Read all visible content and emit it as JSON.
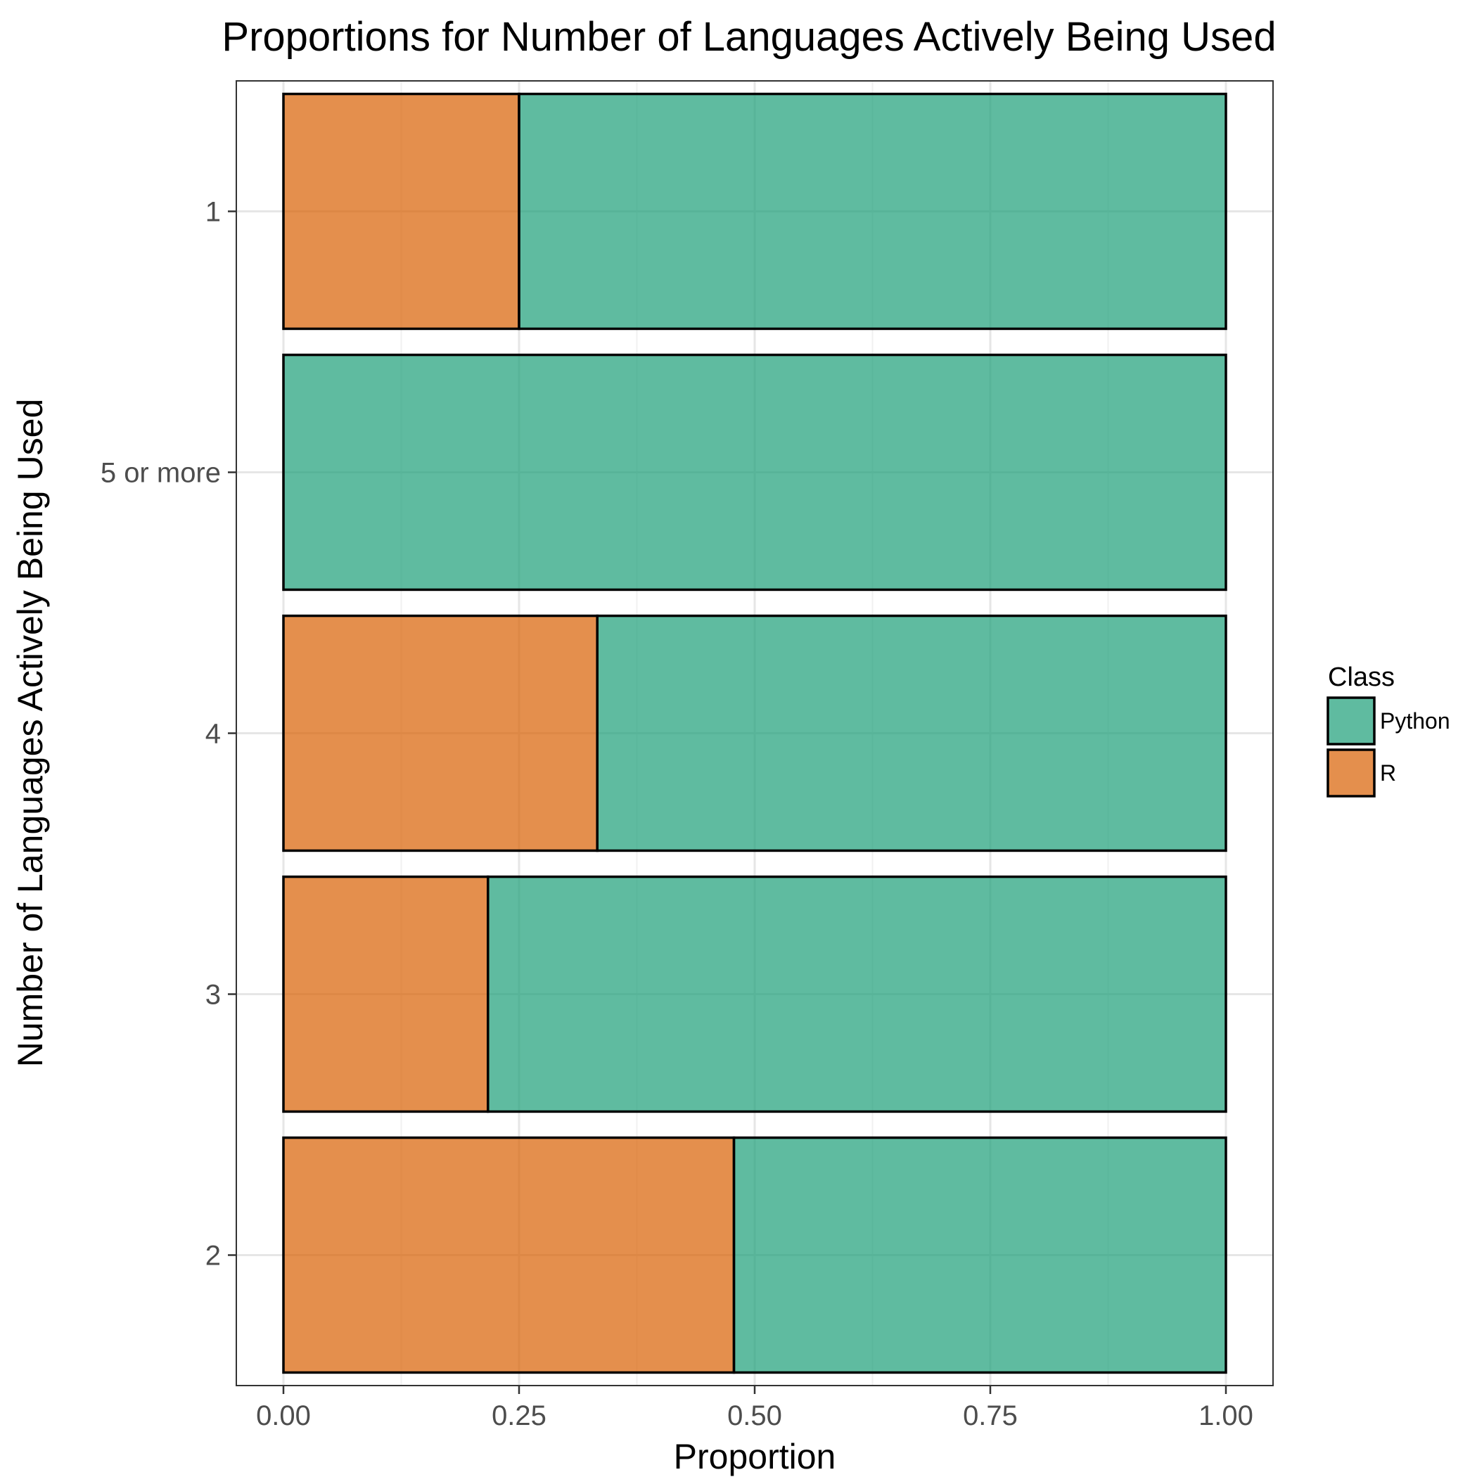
{
  "chart_data": {
    "type": "bar",
    "orientation": "horizontal",
    "stacked": true,
    "title": "Proportions for Number of Languages Actively Being Used",
    "xlabel": "Proportion",
    "ylabel": "Number of Languages Actively Being Used",
    "xlim": [
      0,
      1
    ],
    "x_ticks": [
      "0.00",
      "0.25",
      "0.50",
      "0.75",
      "1.00"
    ],
    "x_tick_values": [
      0,
      0.25,
      0.5,
      0.75,
      1.0
    ],
    "categories": [
      "1",
      "5 or more",
      "4",
      "3",
      "2"
    ],
    "series": [
      {
        "name": "R",
        "values": [
          0.25,
          0.0,
          0.333,
          0.217,
          0.478
        ],
        "color": "#d95f02"
      },
      {
        "name": "Python",
        "values": [
          0.75,
          1.0,
          0.667,
          0.783,
          0.522
        ],
        "color": "#1b9e77"
      }
    ],
    "grid": true,
    "legend": {
      "title": "Class",
      "position": "right",
      "entries": [
        {
          "label": "Python",
          "color": "#1b9e77"
        },
        {
          "label": "R",
          "color": "#d95f02"
        }
      ]
    }
  }
}
